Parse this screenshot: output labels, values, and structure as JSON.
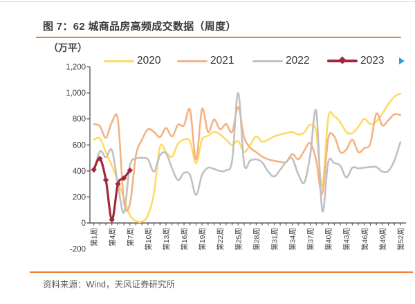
{
  "page": {
    "title": "图 7：62 城商品房高频成交数据（周度）",
    "unit_label": "（万平）",
    "source": "资料来源：Wind，天风证券研究所"
  },
  "colors": {
    "accent_rule": "#ed7d31",
    "scroll_arrow": "#2e9bda",
    "axis": "#3f3f3f",
    "text": "#3b3b3b"
  },
  "chart_data": {
    "type": "line",
    "title": "62 城商品房高频成交数据（周度）",
    "unit": "万平",
    "grid": false,
    "legend_position": "top",
    "ylim": [
      -200,
      1200
    ],
    "y_ticks": [
      -200,
      0,
      200,
      400,
      600,
      800,
      1000,
      1200
    ],
    "y_tick_labels": [
      "-200",
      "0",
      "200",
      "400",
      "600",
      "800",
      "1,000",
      "1,200"
    ],
    "x_label_weeks": [
      1,
      4,
      7,
      10,
      13,
      16,
      19,
      22,
      25,
      28,
      31,
      34,
      37,
      40,
      43,
      46,
      49,
      52
    ],
    "x_tick_labels": [
      "第1周",
      "第4周",
      "第7周",
      "第10周",
      "第13周",
      "第16周",
      "第19周",
      "第22周",
      "第25周",
      "第28周",
      "第31周",
      "第34周",
      "第37周",
      "第40周",
      "第43周",
      "第46周",
      "第49周",
      "第52周"
    ],
    "weeks_total": 52,
    "series": [
      {
        "name": "2020",
        "color": "#ffd965",
        "width": 2.6,
        "values": [
          640,
          650,
          545,
          440,
          320,
          190,
          60,
          15,
          10,
          60,
          230,
          585,
          545,
          510,
          610,
          640,
          630,
          460,
          640,
          670,
          700,
          680,
          640,
          600,
          630,
          545,
          600,
          665,
          625,
          640,
          665,
          680,
          690,
          700,
          680,
          695,
          755,
          700,
          280,
          810,
          820,
          775,
          700,
          690,
          740,
          800,
          760,
          780,
          840,
          915,
          970,
          995
        ]
      },
      {
        "name": "2021",
        "color": "#f5b183",
        "width": 2.6,
        "values": [
          760,
          745,
          655,
          775,
          790,
          165,
          145,
          520,
          640,
          720,
          700,
          660,
          730,
          665,
          755,
          750,
          870,
          490,
          875,
          700,
          795,
          720,
          760,
          700,
          890,
          660,
          580,
          545,
          510,
          490,
          478,
          470,
          468,
          530,
          490,
          555,
          615,
          480,
          225,
          650,
          665,
          545,
          565,
          640,
          545,
          575,
          610,
          840,
          750,
          790,
          835,
          830
        ]
      },
      {
        "name": "2022",
        "color": "#c0c0c0",
        "width": 2.6,
        "values": [
          390,
          550,
          505,
          560,
          295,
          80,
          440,
          495,
          500,
          490,
          395,
          520,
          535,
          420,
          330,
          385,
          370,
          215,
          370,
          425,
          415,
          400,
          405,
          480,
          1000,
          455,
          480,
          490,
          465,
          395,
          357,
          410,
          470,
          495,
          375,
          310,
          520,
          860,
          95,
          470,
          460,
          440,
          350,
          425,
          420,
          425,
          430,
          430,
          395,
          400,
          480,
          620
        ]
      },
      {
        "name": "2023",
        "color": "#a1283b",
        "width": 3.2,
        "marker": "diamond",
        "values": [
          410,
          495,
          330,
          25,
          300,
          345,
          405
        ]
      }
    ]
  }
}
